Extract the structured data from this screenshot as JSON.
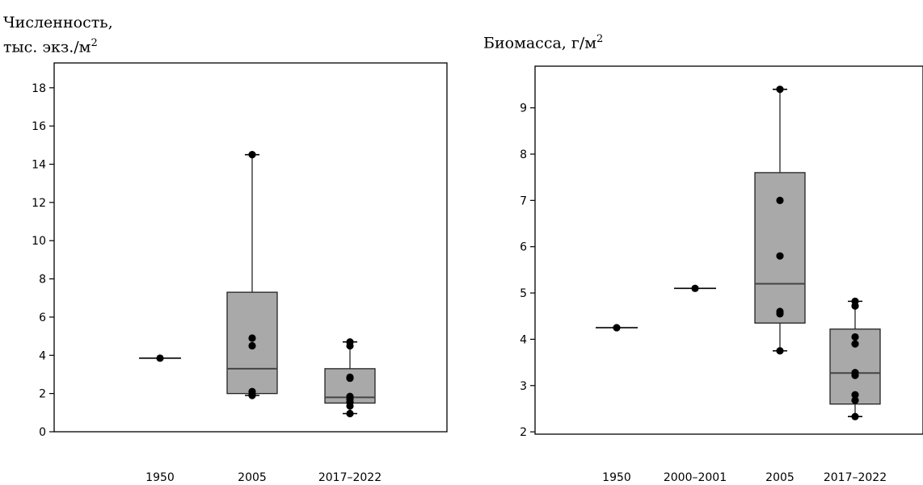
{
  "chart_data": [
    {
      "type": "box",
      "ylabel_line1": "Численность,",
      "ylabel_line2": "тыс. экз./м",
      "ylabel_sup": "2",
      "ylim": [
        0,
        19.3
      ],
      "yticks": [
        0,
        2,
        4,
        6,
        8,
        10,
        12,
        14,
        16,
        18
      ],
      "categories": [
        "1950",
        "2005",
        "2017–2022"
      ],
      "boxes": [
        {
          "category": "1950",
          "min": 3.85,
          "q1": 3.85,
          "median": 3.85,
          "q3": 3.85,
          "max": 3.85,
          "points": [
            3.85
          ]
        },
        {
          "category": "2005",
          "min": 1.9,
          "q1": 2.0,
          "median": 3.3,
          "q3": 7.3,
          "max": 14.5,
          "points": [
            14.5,
            4.9,
            4.5,
            2.1,
            1.95,
            1.9
          ]
        },
        {
          "category": "2017–2022",
          "min": 0.95,
          "q1": 1.5,
          "median": 1.8,
          "q3": 3.3,
          "max": 4.7,
          "points": [
            4.7,
            4.5,
            2.85,
            2.8,
            1.85,
            1.7,
            1.55,
            1.35,
            0.95
          ]
        }
      ]
    },
    {
      "type": "box",
      "ylabel_line1": "Биомасса, г/м",
      "ylabel_sup": "2",
      "ylim": [
        1.95,
        9.9
      ],
      "yticks": [
        2,
        3,
        4,
        5,
        6,
        7,
        8,
        9
      ],
      "categories": [
        "1950",
        "2000–2001",
        "2005",
        "2017–2022"
      ],
      "boxes": [
        {
          "category": "1950",
          "min": 4.25,
          "q1": 4.25,
          "median": 4.25,
          "q3": 4.25,
          "max": 4.25,
          "points": [
            4.25
          ]
        },
        {
          "category": "2000–2001",
          "min": 5.1,
          "q1": 5.1,
          "median": 5.1,
          "q3": 5.1,
          "max": 5.1,
          "points": [
            5.1
          ]
        },
        {
          "category": "2005",
          "min": 3.75,
          "q1": 4.35,
          "median": 5.2,
          "q3": 7.6,
          "max": 9.4,
          "points": [
            9.4,
            7.0,
            5.8,
            4.6,
            4.55,
            3.75
          ]
        },
        {
          "category": "2017–2022",
          "min": 2.33,
          "q1": 2.6,
          "median": 3.27,
          "q3": 4.22,
          "max": 4.82,
          "points": [
            4.82,
            4.72,
            4.05,
            3.9,
            3.28,
            3.22,
            2.8,
            2.68,
            2.33
          ]
        }
      ]
    }
  ]
}
